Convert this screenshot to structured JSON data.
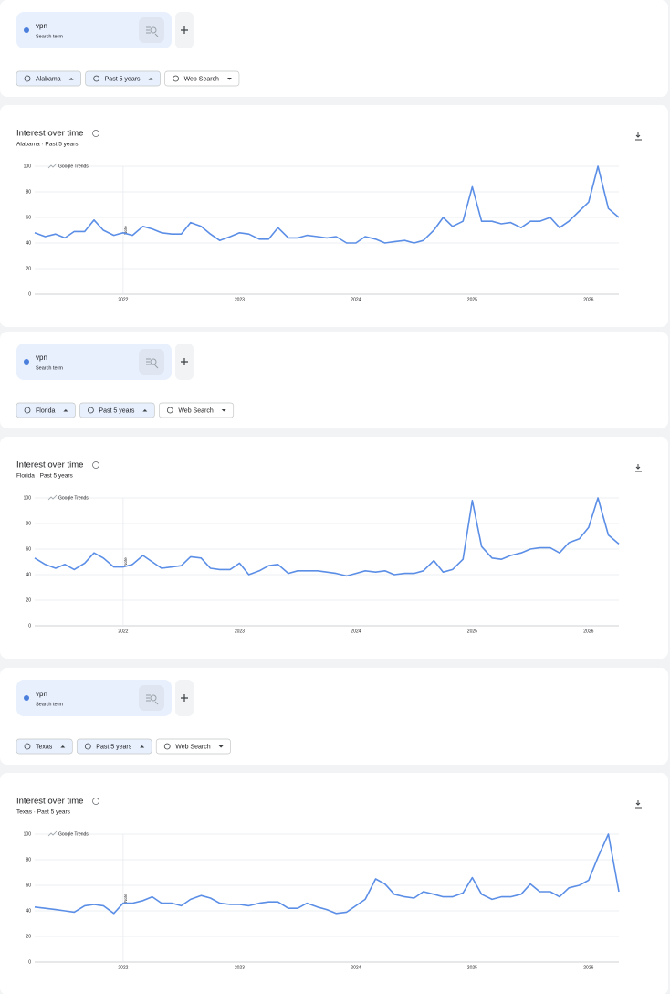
{
  "panels": [
    {
      "search_term": "vpn",
      "search_term_type": "Search term",
      "filters": [
        "Alabama",
        "Past 5 years",
        "Web Search"
      ]
    },
    {
      "search_term": "vpn",
      "search_term_type": "Search term",
      "filters": [
        "Florida",
        "Past 5 years",
        "Web Search"
      ]
    },
    {
      "search_term": "vpn",
      "search_term_type": "Search term",
      "filters": [
        "Texas",
        "Past 5 years",
        "Web Search"
      ]
    }
  ],
  "chart_data": [
    {
      "type": "line",
      "title": "Interest over time",
      "subtitle": "Alabama · Past 5 years",
      "watermark": "Google Trends",
      "annotation": "Note",
      "x": [
        2021.24,
        2021.33,
        2021.42,
        2021.5,
        2021.58,
        2021.67,
        2021.75,
        2021.83,
        2021.92,
        2022.0,
        2022.08,
        2022.17,
        2022.25,
        2022.33,
        2022.42,
        2022.5,
        2022.58,
        2022.67,
        2022.75,
        2022.83,
        2022.92,
        2023.0,
        2023.08,
        2023.17,
        2023.25,
        2023.33,
        2023.42,
        2023.5,
        2023.58,
        2023.67,
        2023.75,
        2023.83,
        2023.92,
        2024.0,
        2024.08,
        2024.17,
        2024.25,
        2024.33,
        2024.42,
        2024.5,
        2024.58,
        2024.67,
        2024.75,
        2024.83,
        2024.92,
        2025.0,
        2025.08,
        2025.17,
        2025.25,
        2025.33,
        2025.42,
        2025.5,
        2025.58,
        2025.67,
        2025.75,
        2025.83,
        2025.92,
        2026.0,
        2026.08,
        2026.17,
        2026.26
      ],
      "values": [
        48,
        45,
        47,
        44,
        49,
        49,
        58,
        50,
        46,
        48,
        46,
        53,
        51,
        48,
        47,
        47,
        56,
        53,
        47,
        42,
        45,
        48,
        47,
        43,
        43,
        52,
        44,
        44,
        46,
        45,
        44,
        45,
        40,
        40,
        45,
        43,
        40,
        41,
        42,
        40,
        42,
        50,
        60,
        53,
        57,
        84,
        57,
        57,
        55,
        56,
        52,
        57,
        57,
        60,
        52,
        57,
        65,
        72,
        100,
        67,
        60
      ],
      "color": "#5b8ee6",
      "xlim": [
        2021.24,
        2026.26
      ],
      "ylim": [
        0,
        100
      ],
      "xticks": [
        2022,
        2023,
        2024,
        2025,
        2026
      ],
      "yticks": [
        0,
        20,
        40,
        60,
        80,
        100
      ],
      "grid": true
    },
    {
      "type": "line",
      "title": "Interest over time",
      "subtitle": "Florida · Past 5 years",
      "watermark": "Google Trends",
      "annotation": "Note",
      "x": [
        2021.24,
        2021.33,
        2021.42,
        2021.5,
        2021.58,
        2021.67,
        2021.75,
        2021.83,
        2021.92,
        2022.0,
        2022.08,
        2022.17,
        2022.25,
        2022.33,
        2022.42,
        2022.5,
        2022.58,
        2022.67,
        2022.75,
        2022.83,
        2022.92,
        2023.0,
        2023.08,
        2023.17,
        2023.25,
        2023.33,
        2023.42,
        2023.5,
        2023.58,
        2023.67,
        2023.75,
        2023.83,
        2023.92,
        2024.0,
        2024.08,
        2024.17,
        2024.25,
        2024.33,
        2024.42,
        2024.5,
        2024.58,
        2024.67,
        2024.75,
        2024.83,
        2024.92,
        2025.0,
        2025.08,
        2025.17,
        2025.25,
        2025.33,
        2025.42,
        2025.5,
        2025.58,
        2025.67,
        2025.75,
        2025.83,
        2025.92,
        2026.0,
        2026.08,
        2026.17,
        2026.26
      ],
      "values": [
        53,
        48,
        45,
        48,
        44,
        49,
        57,
        53,
        46,
        46,
        48,
        55,
        50,
        45,
        46,
        47,
        54,
        53,
        45,
        44,
        44,
        49,
        40,
        43,
        47,
        48,
        41,
        43,
        43,
        43,
        42,
        41,
        39,
        41,
        43,
        42,
        43,
        40,
        41,
        41,
        43,
        51,
        42,
        44,
        52,
        98,
        62,
        53,
        52,
        55,
        57,
        60,
        61,
        61,
        57,
        65,
        68,
        77,
        100,
        71,
        64
      ],
      "color": "#5b8ee6",
      "xlim": [
        2021.24,
        2026.26
      ],
      "ylim": [
        0,
        100
      ],
      "xticks": [
        2022,
        2023,
        2024,
        2025,
        2026
      ],
      "yticks": [
        0,
        20,
        40,
        60,
        80,
        100
      ],
      "grid": true
    },
    {
      "type": "line",
      "title": "Interest over time",
      "subtitle": "Texas · Past 5 years",
      "watermark": "Google Trends",
      "annotation": "Note",
      "x": [
        2021.24,
        2021.33,
        2021.42,
        2021.5,
        2021.58,
        2021.67,
        2021.75,
        2021.83,
        2021.92,
        2022.0,
        2022.08,
        2022.17,
        2022.25,
        2022.33,
        2022.42,
        2022.5,
        2022.58,
        2022.67,
        2022.75,
        2022.83,
        2022.92,
        2023.0,
        2023.08,
        2023.17,
        2023.25,
        2023.33,
        2023.42,
        2023.5,
        2023.58,
        2023.67,
        2023.75,
        2023.83,
        2023.92,
        2024.0,
        2024.08,
        2024.17,
        2024.25,
        2024.33,
        2024.42,
        2024.5,
        2024.58,
        2024.67,
        2024.75,
        2024.83,
        2024.92,
        2025.0,
        2025.08,
        2025.17,
        2025.25,
        2025.33,
        2025.42,
        2025.5,
        2025.58,
        2025.67,
        2025.75,
        2025.83,
        2025.92,
        2026.0,
        2026.08,
        2026.17,
        2026.26
      ],
      "values": [
        43,
        42,
        41,
        40,
        39,
        44,
        45,
        44,
        38,
        46,
        46,
        48,
        51,
        46,
        46,
        44,
        49,
        52,
        50,
        46,
        45,
        45,
        44,
        46,
        47,
        47,
        42,
        42,
        46,
        43,
        41,
        38,
        39,
        44,
        49,
        65,
        61,
        53,
        51,
        50,
        55,
        53,
        51,
        51,
        54,
        66,
        53,
        49,
        51,
        51,
        53,
        61,
        55,
        55,
        51,
        58,
        60,
        64,
        82,
        100,
        55
      ],
      "color": "#5b8ee6",
      "xlim": [
        2021.24,
        2026.26
      ],
      "ylim": [
        0,
        100
      ],
      "xticks": [
        2022,
        2023,
        2024,
        2025,
        2026
      ],
      "yticks": [
        0,
        20,
        40,
        60,
        80,
        100
      ],
      "grid": true
    }
  ]
}
